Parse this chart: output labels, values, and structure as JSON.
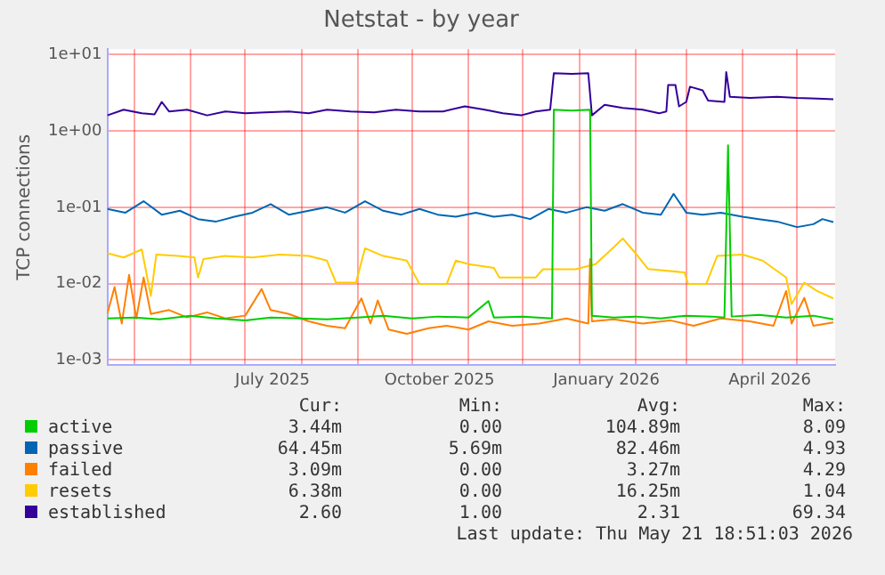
{
  "chart_data": {
    "type": "line",
    "title": "Netstat - by year",
    "ylabel": "TCP connections",
    "log": true,
    "grid": true,
    "legend": "bottom",
    "marker": "none",
    "line_style": "solid",
    "xlim": [
      "2025-04-16",
      "2026-05-22"
    ],
    "xticks": [
      {
        "value": "2025-05-01",
        "label": null
      },
      {
        "value": "2025-06-01",
        "label": null
      },
      {
        "value": "2025-07-01",
        "label": null
      },
      {
        "value": "2025-07-16",
        "label": "July 2025"
      },
      {
        "value": "2025-08-01",
        "label": null
      },
      {
        "value": "2025-09-01",
        "label": null
      },
      {
        "value": "2025-10-01",
        "label": null
      },
      {
        "value": "2025-10-16",
        "label": "October 2025"
      },
      {
        "value": "2025-11-01",
        "label": null
      },
      {
        "value": "2025-12-01",
        "label": null
      },
      {
        "value": "2026-01-01",
        "label": null
      },
      {
        "value": "2026-01-16",
        "label": "January 2026"
      },
      {
        "value": "2026-02-01",
        "label": null
      },
      {
        "value": "2026-03-01",
        "label": null
      },
      {
        "value": "2026-04-01",
        "label": null
      },
      {
        "value": "2026-04-16",
        "label": "April 2026"
      },
      {
        "value": "2026-05-01",
        "label": null
      }
    ],
    "ylim": [
      0.00085,
      11.8
    ],
    "yticks": [
      {
        "value": 0.001,
        "label": "1e-03"
      },
      {
        "value": 0.01,
        "label": "1e-02"
      },
      {
        "value": 0.1,
        "label": "1e-01"
      },
      {
        "value": 1,
        "label": "1e+00"
      },
      {
        "value": 10,
        "label": "1e+01"
      }
    ],
    "series": [
      {
        "name": "active",
        "color": "#00cc00",
        "x": [
          "2025-04-16",
          "2025-05-01",
          "2025-05-15",
          "2025-06-01",
          "2025-06-15",
          "2025-07-01",
          "2025-07-15",
          "2025-08-01",
          "2025-08-15",
          "2025-09-01",
          "2025-09-15",
          "2025-10-01",
          "2025-10-15",
          "2025-11-01",
          "2025-11-12",
          "2025-11-15",
          "2025-12-01",
          "2025-12-17",
          "2025-12-18",
          "2025-12-28",
          "2026-01-07",
          "2026-01-08",
          "2026-01-20",
          "2026-02-01",
          "2026-02-15",
          "2026-03-01",
          "2026-03-15",
          "2026-03-22",
          "2026-03-24",
          "2026-03-26",
          "2026-04-10",
          "2026-04-25",
          "2026-05-10",
          "2026-05-21"
        ],
        "values": [
          0.0035,
          0.0036,
          0.0034,
          0.0038,
          0.0035,
          0.0033,
          0.0036,
          0.0035,
          0.0034,
          0.0036,
          0.0038,
          0.0035,
          0.0037,
          0.0036,
          0.0059,
          0.0036,
          0.0037,
          0.0035,
          1.9,
          1.85,
          1.9,
          0.0038,
          0.0036,
          0.0037,
          0.0035,
          0.0038,
          0.0037,
          0.0036,
          0.65,
          0.0037,
          0.0039,
          0.0036,
          0.0038,
          0.0034
        ]
      },
      {
        "name": "passive",
        "color": "#0066b3",
        "x": [
          "2025-04-16",
          "2025-04-26",
          "2025-05-06",
          "2025-05-16",
          "2025-05-26",
          "2025-06-05",
          "2025-06-15",
          "2025-06-25",
          "2025-07-05",
          "2025-07-15",
          "2025-07-25",
          "2025-08-05",
          "2025-08-15",
          "2025-08-25",
          "2025-09-05",
          "2025-09-15",
          "2025-09-25",
          "2025-10-05",
          "2025-10-15",
          "2025-10-25",
          "2025-11-05",
          "2025-11-15",
          "2025-11-25",
          "2025-12-05",
          "2025-12-15",
          "2025-12-25",
          "2026-01-05",
          "2026-01-15",
          "2026-01-25",
          "2026-02-05",
          "2026-02-15",
          "2026-02-22",
          "2026-03-01",
          "2026-03-10",
          "2026-03-20",
          "2026-04-01",
          "2026-04-10",
          "2026-04-20",
          "2026-05-01",
          "2026-05-10",
          "2026-05-15",
          "2026-05-21"
        ],
        "values": [
          0.095,
          0.085,
          0.12,
          0.08,
          0.09,
          0.07,
          0.065,
          0.075,
          0.085,
          0.11,
          0.08,
          0.09,
          0.1,
          0.085,
          0.12,
          0.09,
          0.08,
          0.095,
          0.08,
          0.075,
          0.085,
          0.075,
          0.08,
          0.07,
          0.095,
          0.085,
          0.1,
          0.09,
          0.11,
          0.085,
          0.08,
          0.15,
          0.085,
          0.08,
          0.085,
          0.075,
          0.07,
          0.065,
          0.055,
          0.06,
          0.07,
          0.064
        ]
      },
      {
        "name": "failed",
        "color": "#ff8000",
        "x": [
          "2025-04-16",
          "2025-04-20",
          "2025-04-24",
          "2025-04-28",
          "2025-05-02",
          "2025-05-06",
          "2025-05-10",
          "2025-05-20",
          "2025-05-30",
          "2025-06-10",
          "2025-06-20",
          "2025-07-01",
          "2025-07-10",
          "2025-07-15",
          "2025-07-25",
          "2025-08-05",
          "2025-08-15",
          "2025-08-25",
          "2025-09-03",
          "2025-09-08",
          "2025-09-12",
          "2025-09-18",
          "2025-09-28",
          "2025-10-10",
          "2025-10-20",
          "2025-11-01",
          "2025-11-12",
          "2025-11-25",
          "2025-12-10",
          "2025-12-25",
          "2026-01-06",
          "2026-01-07",
          "2026-01-08",
          "2026-01-20",
          "2026-02-05",
          "2026-02-20",
          "2026-03-05",
          "2026-03-20",
          "2026-04-05",
          "2026-04-18",
          "2026-04-25",
          "2026-04-28",
          "2026-05-05",
          "2026-05-10",
          "2026-05-21"
        ],
        "values": [
          0.004,
          0.009,
          0.003,
          0.013,
          0.0035,
          0.012,
          0.004,
          0.0045,
          0.0036,
          0.0042,
          0.0035,
          0.0038,
          0.0085,
          0.0045,
          0.004,
          0.0032,
          0.0028,
          0.0026,
          0.0064,
          0.003,
          0.006,
          0.0025,
          0.0022,
          0.0026,
          0.0028,
          0.0025,
          0.0032,
          0.0028,
          0.003,
          0.0035,
          0.003,
          0.021,
          0.0032,
          0.0034,
          0.003,
          0.0033,
          0.0028,
          0.0035,
          0.0032,
          0.0028,
          0.008,
          0.003,
          0.0065,
          0.0028,
          0.0031
        ]
      },
      {
        "name": "resets",
        "color": "#ffcc00",
        "x": [
          "2025-04-16",
          "2025-04-25",
          "2025-05-05",
          "2025-05-10",
          "2025-05-13",
          "2025-05-25",
          "2025-06-03",
          "2025-06-05",
          "2025-06-08",
          "2025-06-20",
          "2025-07-05",
          "2025-07-20",
          "2025-08-05",
          "2025-08-15",
          "2025-08-20",
          "2025-08-31",
          "2025-09-05",
          "2025-09-15",
          "2025-09-28",
          "2025-10-05",
          "2025-10-20",
          "2025-10-25",
          "2025-11-01",
          "2025-11-15",
          "2025-11-18",
          "2025-12-08",
          "2025-12-12",
          "2025-12-30",
          "2026-01-10",
          "2026-01-20",
          "2026-01-25",
          "2026-02-01",
          "2026-02-08",
          "2026-02-28",
          "2026-03-02",
          "2026-03-12",
          "2026-03-18",
          "2026-04-01",
          "2026-04-12",
          "2026-04-25",
          "2026-04-28",
          "2026-05-05",
          "2026-05-12",
          "2026-05-21"
        ],
        "values": [
          0.025,
          0.022,
          0.028,
          0.0069,
          0.024,
          0.023,
          0.022,
          0.012,
          0.021,
          0.023,
          0.022,
          0.024,
          0.023,
          0.02,
          0.0103,
          0.0103,
          0.029,
          0.023,
          0.02,
          0.0099,
          0.0099,
          0.02,
          0.018,
          0.016,
          0.012,
          0.012,
          0.0154,
          0.0154,
          0.018,
          0.03,
          0.039,
          0.025,
          0.0155,
          0.014,
          0.0099,
          0.0099,
          0.023,
          0.024,
          0.02,
          0.012,
          0.0054,
          0.0103,
          0.008,
          0.0064
        ]
      },
      {
        "name": "established",
        "color": "#330099",
        "x": [
          "2025-04-16",
          "2025-04-25",
          "2025-05-05",
          "2025-05-12",
          "2025-05-16",
          "2025-05-20",
          "2025-05-30",
          "2025-06-10",
          "2025-06-20",
          "2025-07-01",
          "2025-07-12",
          "2025-07-25",
          "2025-08-05",
          "2025-08-15",
          "2025-08-28",
          "2025-09-10",
          "2025-09-22",
          "2025-10-05",
          "2025-10-18",
          "2025-10-30",
          "2025-11-10",
          "2025-11-20",
          "2025-11-30",
          "2025-12-08",
          "2025-12-16",
          "2025-12-18",
          "2025-12-28",
          "2026-01-06",
          "2026-01-08",
          "2026-01-15",
          "2026-01-25",
          "2026-02-05",
          "2026-02-14",
          "2026-02-18",
          "2026-02-19",
          "2026-02-23",
          "2026-02-25",
          "2026-03-01",
          "2026-03-03",
          "2026-03-10",
          "2026-03-13",
          "2026-03-22",
          "2026-03-23",
          "2026-03-25",
          "2026-04-05",
          "2026-04-20",
          "2026-05-01",
          "2026-05-12",
          "2026-05-21"
        ],
        "values": [
          1.6,
          1.9,
          1.7,
          1.65,
          2.4,
          1.8,
          1.9,
          1.6,
          1.8,
          1.7,
          1.75,
          1.8,
          1.7,
          1.9,
          1.8,
          1.75,
          1.9,
          1.8,
          1.8,
          2.1,
          1.9,
          1.7,
          1.6,
          1.8,
          1.9,
          5.7,
          5.6,
          5.7,
          1.6,
          2.2,
          2.0,
          1.9,
          1.7,
          1.8,
          4.0,
          4.0,
          2.1,
          2.4,
          3.8,
          3.4,
          2.5,
          2.4,
          5.9,
          2.8,
          2.7,
          2.8,
          2.7,
          2.65,
          2.6
        ]
      }
    ],
    "annotations": [
      "Cur:",
      "Min:",
      "Avg:",
      "Max:",
      "3.44m",
      "0.00",
      "104.89m",
      "8.09",
      "64.45m",
      "5.69m",
      "82.46m",
      "4.93",
      "3.09m",
      "0.00",
      "3.27m",
      "4.29",
      "6.38m",
      "0.00",
      "16.25m",
      "1.04",
      "2.60",
      "1.00",
      "2.31",
      "69.34",
      "Last update: Thu May 21 18:51:03 2026"
    ]
  }
}
